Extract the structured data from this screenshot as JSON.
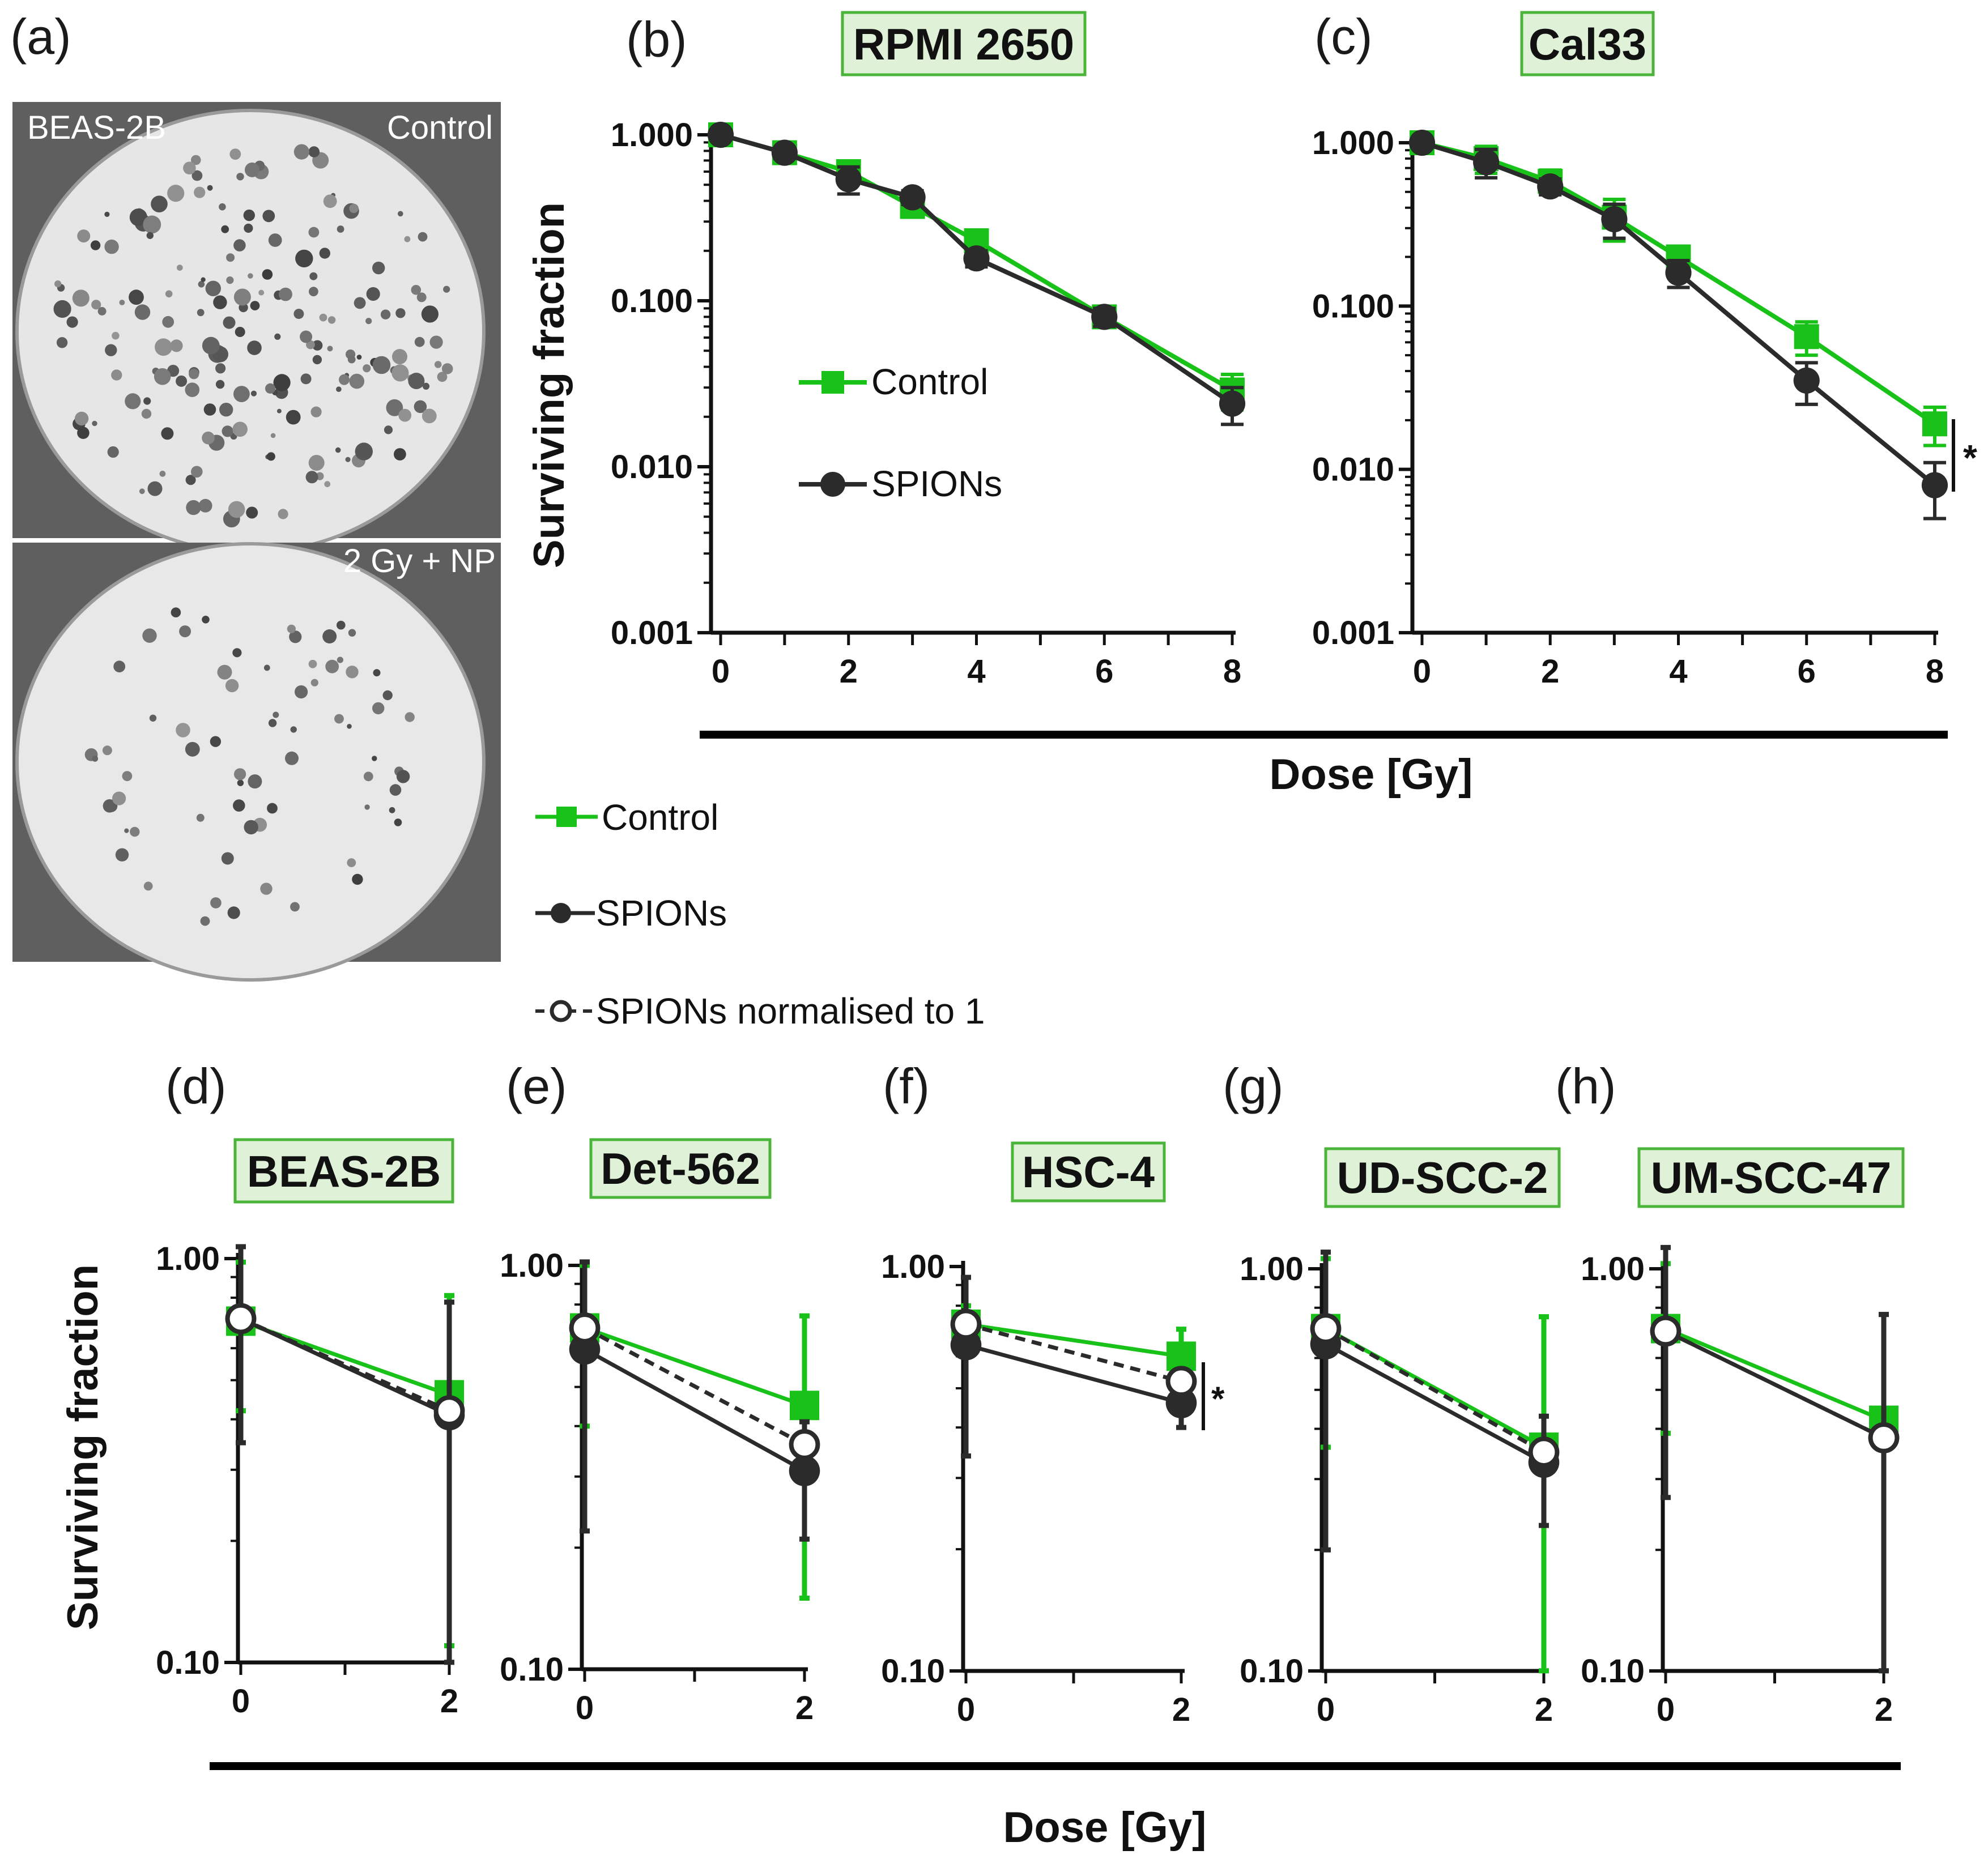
{
  "colors": {
    "control": "#19c219",
    "spions": "#2b2b2b",
    "title_fill": "#dff2d8",
    "title_stroke": "#4bb43a"
  },
  "panel_a": {
    "letter": "(a)",
    "top_cell": "BEAS-2B",
    "top_condition": "Control",
    "bottom_condition": "2 Gy + NP"
  },
  "top_shared_xlabel": "Dose [Gy]",
  "bottom_shared_xlabel": "Dose [Gy]",
  "bottom_shared_ylabel": "Surviving fraction",
  "legend_main": {
    "items": [
      "Control",
      "SPIONs",
      "SPIONs normalised to 1"
    ]
  },
  "sig": "*",
  "chart_data": [
    {
      "panel": "(b)",
      "title": "RPMI 2650",
      "type": "line",
      "ylabel": "Surviving fraction",
      "xlabel": "Dose [Gy]",
      "yscale": "log",
      "ylim": [
        0.001,
        1
      ],
      "xlim": [
        0,
        8
      ],
      "y_ticks": [
        "1.000",
        "0.100",
        "0.010",
        "0.001"
      ],
      "x_ticks": [
        "0",
        "2",
        "4",
        "6",
        "8"
      ],
      "legend": [
        "Control",
        "SPIONs"
      ],
      "series": [
        {
          "name": "Control",
          "x": [
            0,
            1,
            2,
            3,
            4,
            6,
            8
          ],
          "y": [
            1.0,
            0.78,
            0.6,
            0.37,
            0.23,
            0.08,
            0.029
          ],
          "err": [
            0.05,
            0.06,
            0.08,
            0.04,
            0.03,
            0.008,
            0.007
          ]
        },
        {
          "name": "SPIONs",
          "x": [
            0,
            1,
            2,
            3,
            4,
            6,
            8
          ],
          "y": [
            1.0,
            0.78,
            0.54,
            0.42,
            0.18,
            0.08,
            0.024
          ],
          "err": [
            0.05,
            0.06,
            0.1,
            0.04,
            0.02,
            0.01,
            0.006
          ]
        }
      ]
    },
    {
      "panel": "(c)",
      "title": "Cal33",
      "type": "line",
      "ylabel": "Surviving fraction",
      "xlabel": "Dose [Gy]",
      "yscale": "log",
      "ylim": [
        0.001,
        1
      ],
      "xlim": [
        0,
        8
      ],
      "y_ticks": [
        "1.000",
        "0.100",
        "0.010",
        "0.001"
      ],
      "x_ticks": [
        "0",
        "2",
        "4",
        "6",
        "8"
      ],
      "significance": "*",
      "series": [
        {
          "name": "Control",
          "x": [
            0,
            1,
            2,
            3,
            4,
            6,
            8
          ],
          "y": [
            1.0,
            0.8,
            0.58,
            0.35,
            0.2,
            0.065,
            0.019
          ],
          "err": [
            0.05,
            0.15,
            0.1,
            0.1,
            0.03,
            0.015,
            0.005
          ]
        },
        {
          "name": "SPIONs",
          "x": [
            0,
            1,
            2,
            3,
            4,
            6,
            8
          ],
          "y": [
            1.0,
            0.76,
            0.54,
            0.34,
            0.16,
            0.035,
            0.008
          ],
          "err": [
            0.05,
            0.15,
            0.06,
            0.08,
            0.03,
            0.01,
            0.003
          ]
        }
      ]
    },
    {
      "panel": "(d)",
      "title": "BEAS-2B",
      "type": "line",
      "yscale": "log",
      "ylim": [
        0.1,
        1
      ],
      "y_ticks": [
        "1.00",
        "0.10"
      ],
      "x_ticks": [
        "0",
        "2"
      ],
      "series": [
        {
          "name": "Control",
          "x": [
            0,
            2
          ],
          "y": [
            0.7,
            0.46
          ],
          "err": [
            0.28,
            0.35
          ]
        },
        {
          "name": "SPIONs",
          "x": [
            0,
            2
          ],
          "y": [
            0.71,
            0.41
          ],
          "err": [
            0.36,
            0.37
          ]
        },
        {
          "name": "SPIONs normalised to 1",
          "x": [
            0,
            2
          ],
          "y": [
            0.71,
            0.42
          ]
        }
      ]
    },
    {
      "panel": "(e)",
      "title": "Det-562",
      "type": "line",
      "yscale": "log",
      "ylim": [
        0.1,
        1
      ],
      "y_ticks": [
        "1.00",
        "0.10"
      ],
      "x_ticks": [
        "0",
        "2"
      ],
      "series": [
        {
          "name": "Control",
          "x": [
            0,
            2
          ],
          "y": [
            0.7,
            0.45
          ],
          "err": [
            0.3,
            0.3
          ]
        },
        {
          "name": "SPIONs",
          "x": [
            0,
            2
          ],
          "y": [
            0.62,
            0.31
          ],
          "err": [
            0.4,
            0.1
          ]
        },
        {
          "name": "SPIONs normalised to 1",
          "x": [
            0,
            2
          ],
          "y": [
            0.7,
            0.36
          ]
        }
      ]
    },
    {
      "panel": "(f)",
      "title": "HSC-4",
      "type": "line",
      "yscale": "log",
      "ylim": [
        0.1,
        1
      ],
      "y_ticks": [
        "1.00",
        "0.10"
      ],
      "x_ticks": [
        "0",
        "2"
      ],
      "significance": "*",
      "series": [
        {
          "name": "Control",
          "x": [
            0,
            2
          ],
          "y": [
            0.72,
            0.6
          ],
          "err": [
            0.08,
            0.1
          ]
        },
        {
          "name": "SPIONs",
          "x": [
            0,
            2
          ],
          "y": [
            0.64,
            0.46
          ],
          "err": [
            0.3,
            0.06
          ]
        },
        {
          "name": "SPIONs normalised to 1",
          "x": [
            0,
            2
          ],
          "y": [
            0.72,
            0.52
          ]
        }
      ]
    },
    {
      "panel": "(g)",
      "title": "UD-SCC-2",
      "type": "line",
      "yscale": "log",
      "ylim": [
        0.1,
        1
      ],
      "y_ticks": [
        "1.00",
        "0.10"
      ],
      "x_ticks": [
        "0",
        "2"
      ],
      "series": [
        {
          "name": "Control",
          "x": [
            0,
            2
          ],
          "y": [
            0.71,
            0.36
          ],
          "err": [
            0.35,
            0.4
          ]
        },
        {
          "name": "SPIONs",
          "x": [
            0,
            2
          ],
          "y": [
            0.65,
            0.33
          ],
          "err": [
            0.45,
            0.1
          ]
        },
        {
          "name": "SPIONs normalised to 1",
          "x": [
            0,
            2
          ],
          "y": [
            0.71,
            0.35
          ]
        }
      ]
    },
    {
      "panel": "(h)",
      "title": "UM-SCC-47",
      "type": "line",
      "yscale": "log",
      "ylim": [
        0.1,
        1
      ],
      "y_ticks": [
        "1.00",
        "0.10"
      ],
      "x_ticks": [
        "0",
        "2"
      ],
      "series": [
        {
          "name": "Control",
          "x": [
            0,
            2
          ],
          "y": [
            0.71,
            0.42
          ],
          "err": [
            0.32,
            0.35
          ]
        },
        {
          "name": "SPIONs",
          "x": [
            0,
            2
          ],
          "y": [
            0.7,
            0.38
          ],
          "err": [
            0.43,
            0.39
          ]
        },
        {
          "name": "SPIONs normalised to 1",
          "x": [
            0,
            2
          ],
          "y": [
            0.7,
            0.38
          ]
        }
      ]
    }
  ]
}
